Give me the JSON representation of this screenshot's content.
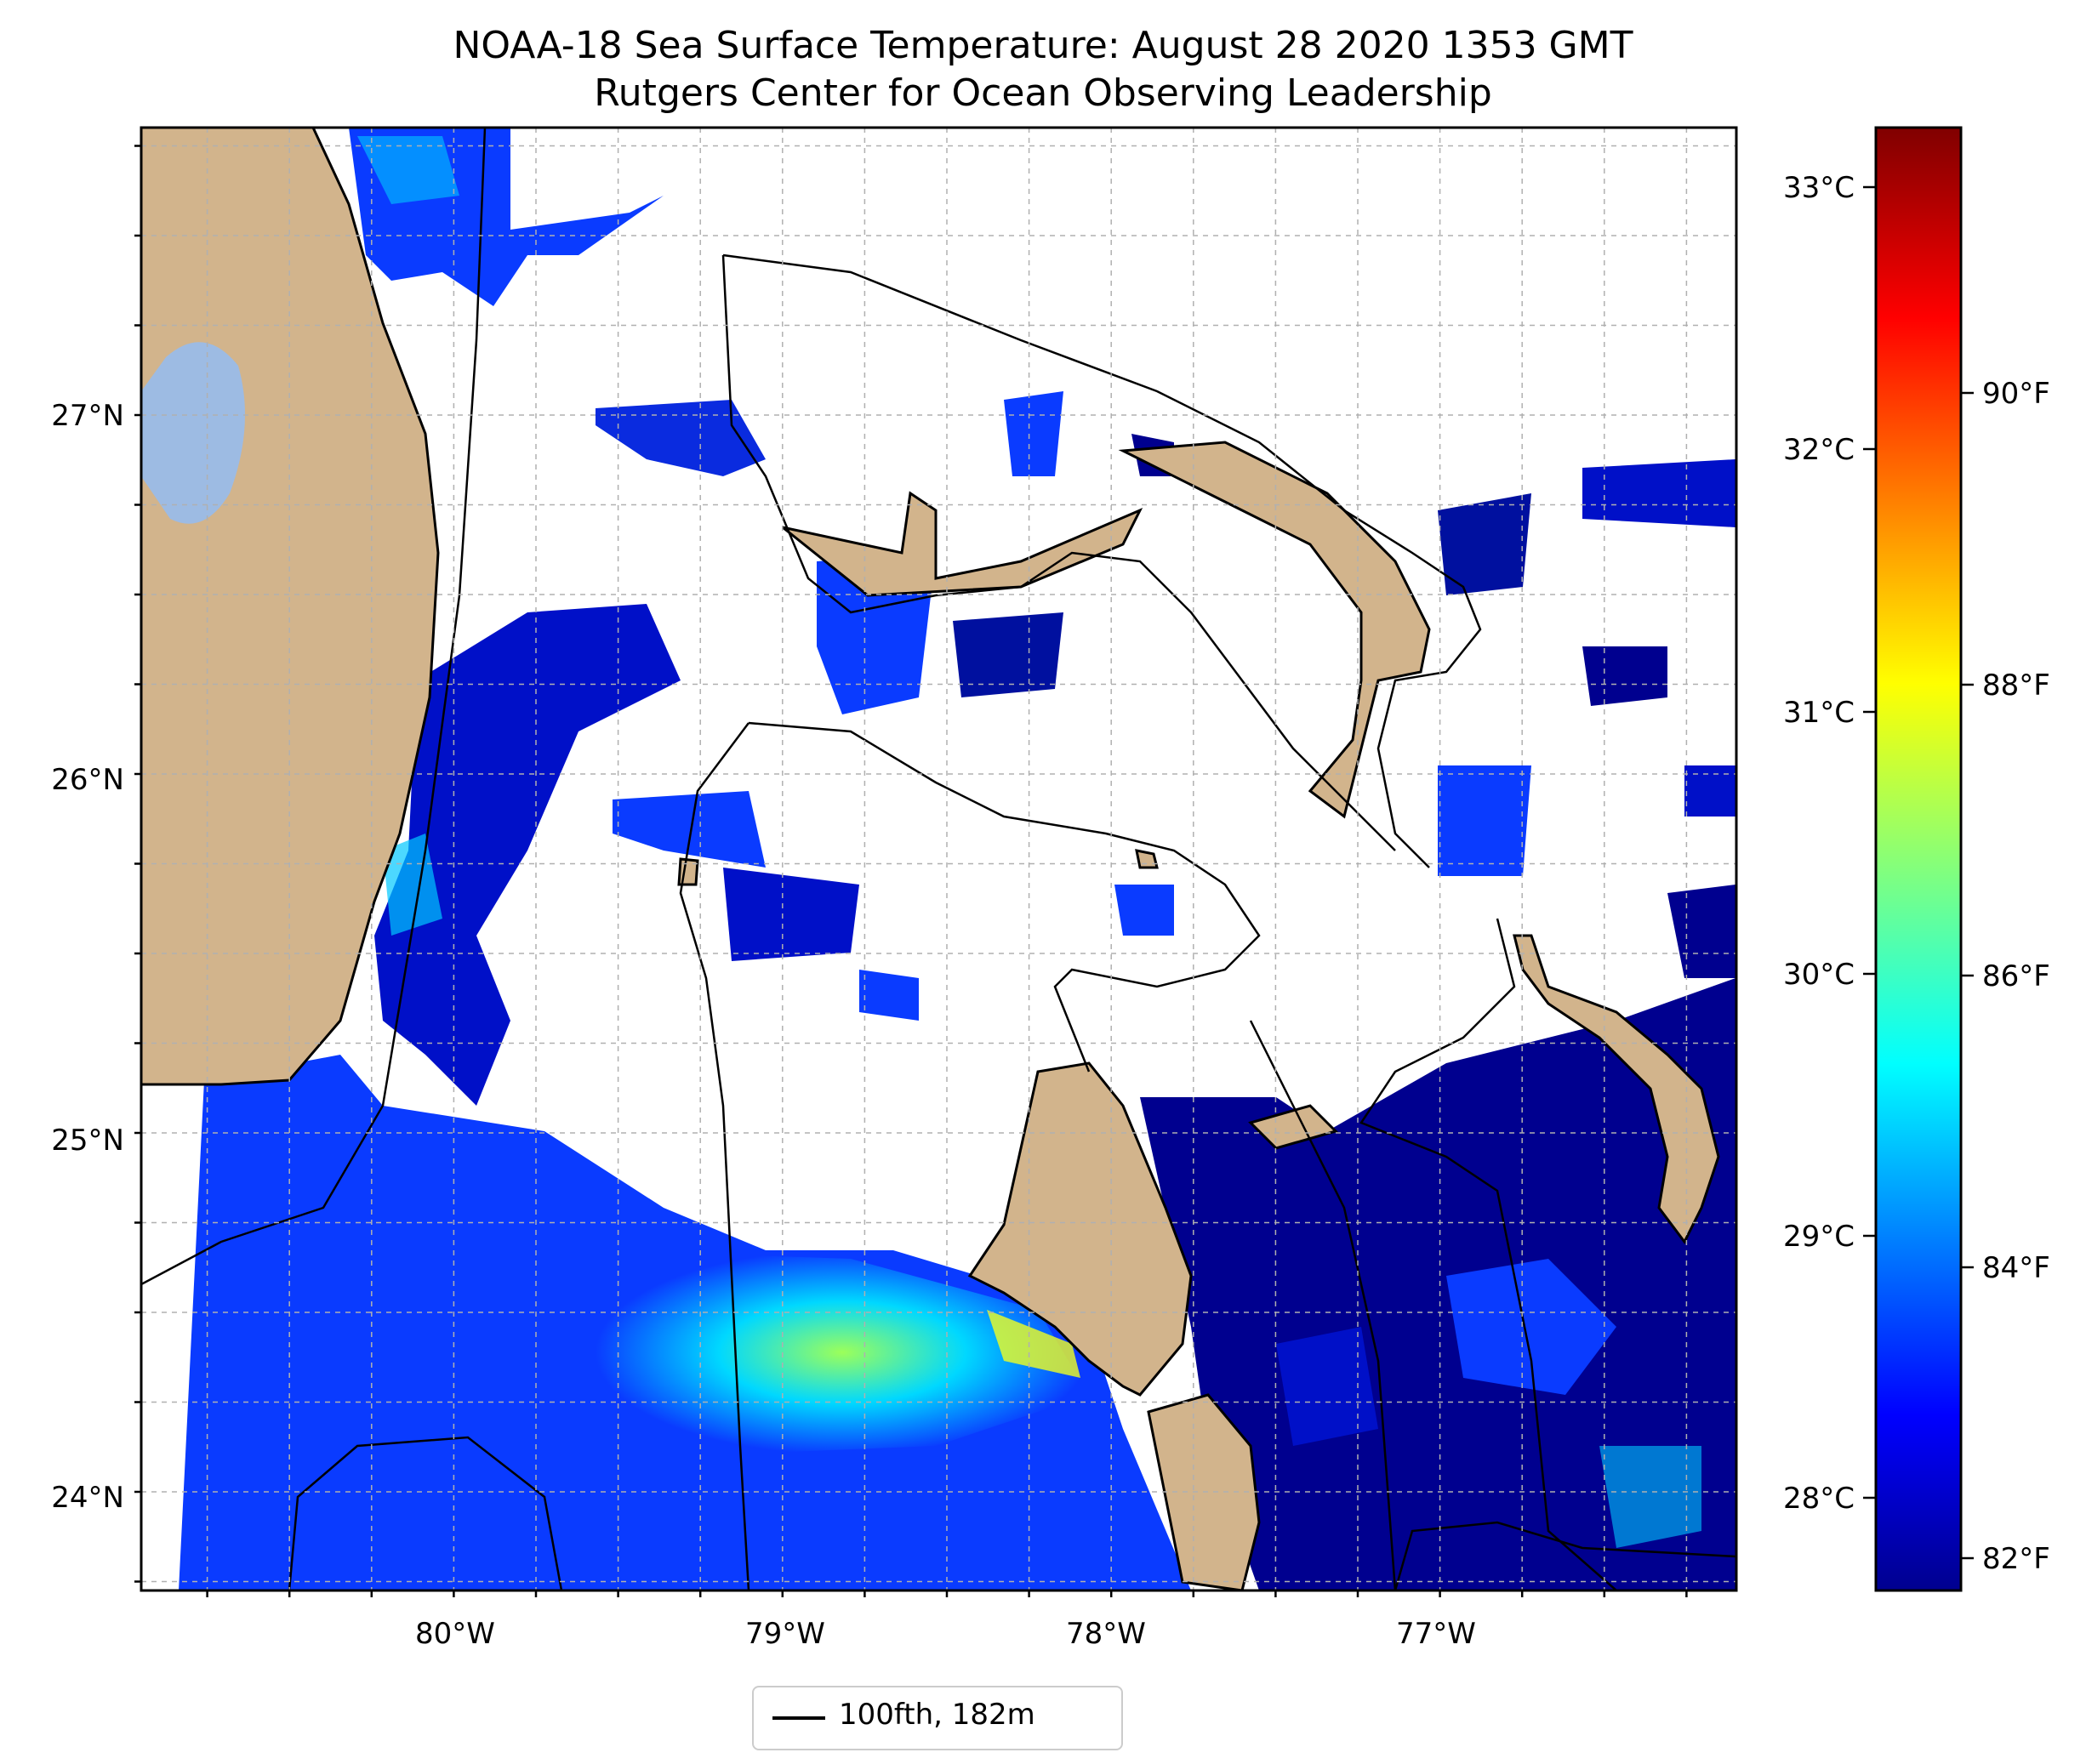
{
  "map": {
    "title": "NOAA-18 Sea Surface Temperature: August 28 2020 1353 GMT",
    "subtitle": "Rutgers Center for Ocean Observing Leadership",
    "lon_labels": [
      "80°W",
      "79°W",
      "78°W",
      "77°W"
    ],
    "lat_labels": [
      "27°N",
      "26°N",
      "25°N",
      "24°N"
    ],
    "legend_label": "100fth, 182m",
    "colors": {
      "land": "#d2b48c",
      "lake": "#9dbbe3",
      "ocean_dark": "#00008f",
      "ocean_mid": "#0a3bff",
      "ocean_light": "#00c8ff",
      "grid": "#b0b0b0"
    }
  },
  "colorbar": {
    "celsius_labels": [
      "33°C",
      "32°C",
      "31°C",
      "30°C",
      "29°C",
      "28°C"
    ],
    "fahrenheit_labels": [
      "90°F",
      "88°F",
      "86°F",
      "84°F",
      "82°F"
    ],
    "colormap": "jet"
  }
}
